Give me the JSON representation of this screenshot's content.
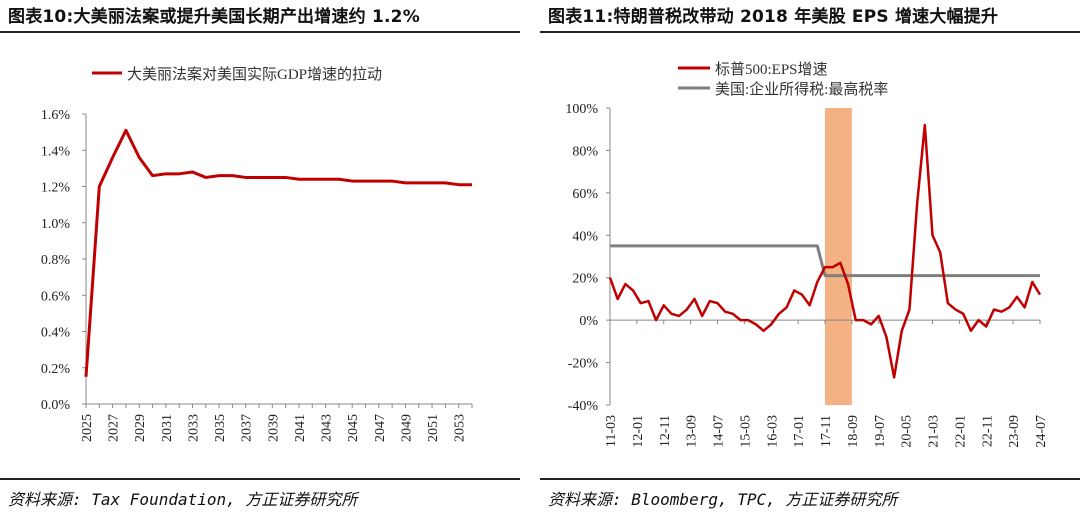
{
  "left_panel": {
    "title": "图表10:大美丽法案或提升美国长期产出增速约 1.2%",
    "source": "资料来源: Tax Foundation, 方正证券研究所"
  },
  "right_panel": {
    "title": "图表11:特朗普税改带动 2018 年美股 EPS 增速大幅提升",
    "source": "资料来源: Bloomberg, TPC, 方正证券研究所"
  },
  "colors": {
    "red": "#c00000",
    "gray": "#7f7f7f",
    "highlight": "#f4b183"
  },
  "chart_data": [
    {
      "type": "line",
      "title": "图表10:大美丽法案或提升美国长期产出增速约 1.2%",
      "xlabel": "",
      "ylabel": "",
      "ylim": [
        0,
        1.6
      ],
      "y_ticks": [
        "0.0%",
        "0.2%",
        "0.4%",
        "0.6%",
        "0.8%",
        "1.0%",
        "1.2%",
        "1.4%",
        "1.6%"
      ],
      "x_ticks": [
        "2025",
        "2027",
        "2029",
        "2031",
        "2033",
        "2035",
        "2037",
        "2039",
        "2041",
        "2043",
        "2045",
        "2047",
        "2049",
        "2051",
        "2053"
      ],
      "x": [
        2025,
        2026,
        2027,
        2028,
        2029,
        2030,
        2031,
        2032,
        2033,
        2034,
        2035,
        2036,
        2037,
        2038,
        2039,
        2040,
        2041,
        2042,
        2043,
        2044,
        2045,
        2046,
        2047,
        2048,
        2049,
        2050,
        2051,
        2052,
        2053,
        2054
      ],
      "series": [
        {
          "name": "大美丽法案对美国实际GDP增速的拉动",
          "color": "#c00000",
          "values": [
            0.15,
            1.2,
            1.36,
            1.51,
            1.36,
            1.26,
            1.27,
            1.27,
            1.28,
            1.25,
            1.26,
            1.26,
            1.25,
            1.25,
            1.25,
            1.25,
            1.24,
            1.24,
            1.24,
            1.24,
            1.23,
            1.23,
            1.23,
            1.23,
            1.22,
            1.22,
            1.22,
            1.22,
            1.21,
            1.21
          ]
        }
      ],
      "legend": "top",
      "grid": false
    },
    {
      "type": "line",
      "title": "图表11:特朗普税改带动 2018 年美股 EPS 增速大幅提升",
      "xlabel": "",
      "ylabel": "",
      "ylim": [
        -40,
        100
      ],
      "y_ticks": [
        "-40%",
        "-20%",
        "0%",
        "20%",
        "40%",
        "60%",
        "80%",
        "100%"
      ],
      "x_ticks": [
        "11-03",
        "12-01",
        "12-11",
        "13-09",
        "14-07",
        "15-05",
        "16-03",
        "17-01",
        "17-11",
        "18-09",
        "19-07",
        "20-05",
        "21-03",
        "22-01",
        "22-11",
        "23-09",
        "24-07"
      ],
      "highlight_period": [
        "17-11",
        "18-09"
      ],
      "series": [
        {
          "name": "标普500:EPS增速",
          "color": "#c00000",
          "values": [
            20,
            10,
            17,
            14,
            8,
            9,
            0,
            7,
            3,
            2,
            5,
            10,
            2,
            9,
            8,
            4,
            3,
            0,
            0,
            -2,
            -5,
            -2,
            3,
            6,
            14,
            12,
            7,
            18,
            25,
            25,
            27,
            17,
            0,
            0,
            -2,
            2,
            -8,
            -27,
            -5,
            5,
            55,
            92,
            40,
            32,
            8,
            5,
            3,
            -5,
            0,
            -3,
            5,
            4,
            6,
            11,
            6,
            18,
            12
          ]
        },
        {
          "name": "美国:企业所得税:最高税率",
          "color": "#7f7f7f",
          "values": [
            35,
            35,
            35,
            35,
            35,
            35,
            35,
            35,
            35,
            35,
            35,
            35,
            35,
            35,
            35,
            35,
            35,
            35,
            35,
            35,
            35,
            35,
            35,
            35,
            35,
            35,
            35,
            35,
            21,
            21,
            21,
            21,
            21,
            21,
            21,
            21,
            21,
            21,
            21,
            21,
            21,
            21,
            21,
            21,
            21,
            21,
            21,
            21,
            21,
            21,
            21,
            21,
            21,
            21,
            21,
            21,
            21
          ]
        }
      ],
      "legend": "top",
      "grid": false
    }
  ]
}
